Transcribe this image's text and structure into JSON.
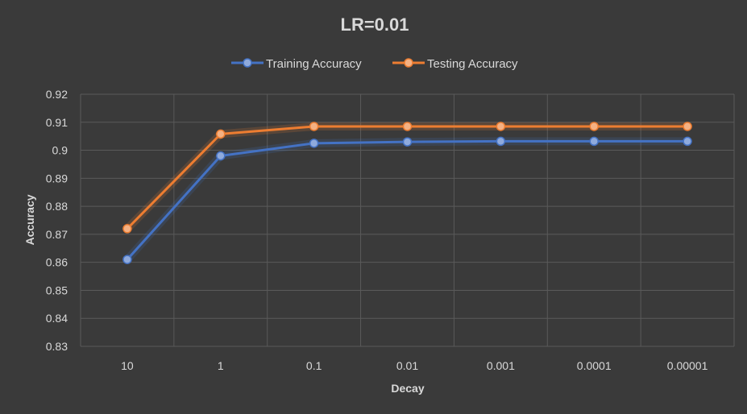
{
  "chart_data": {
    "type": "line",
    "title": "LR=0.01",
    "xlabel": "Decay",
    "ylabel": "Accuracy",
    "categories": [
      "10",
      "1",
      "0.1",
      "0.01",
      "0.001",
      "0.0001",
      "0.00001"
    ],
    "ylim": [
      0.83,
      0.92
    ],
    "yticks": [
      "0.83",
      "0.84",
      "0.85",
      "0.86",
      "0.87",
      "0.88",
      "0.89",
      "0.9",
      "0.91",
      "0.92"
    ],
    "grid": true,
    "legend": "top",
    "series": [
      {
        "name": "Training Accuracy",
        "color": "#4472c4",
        "marker_color": "#8faadc",
        "values": [
          0.861,
          0.898,
          0.9025,
          0.903,
          0.9032,
          0.9032,
          0.9032
        ]
      },
      {
        "name": "Testing Accuracy",
        "color": "#ed7d31",
        "marker_color": "#f4b183",
        "values": [
          0.872,
          0.9058,
          0.9085,
          0.9085,
          0.9085,
          0.9085,
          0.9085
        ]
      }
    ]
  }
}
